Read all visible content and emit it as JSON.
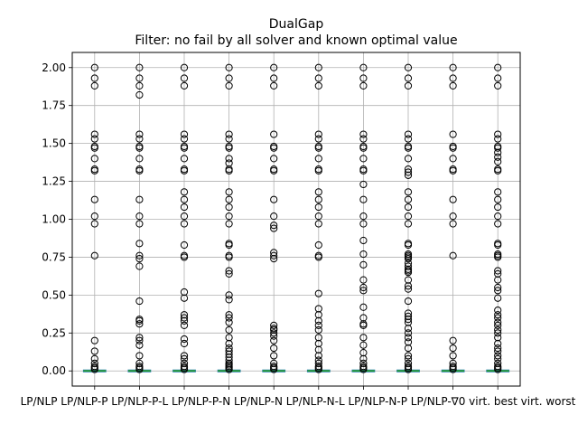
{
  "chart_data": {
    "type": "box",
    "title": "DualGap",
    "subtitle": "Filter: no fail by all solver and known optimal value",
    "xlabel": "",
    "ylabel": "",
    "ylim": [
      -0.1,
      2.1
    ],
    "y_ticks": [
      "0.00",
      "0.25",
      "0.50",
      "0.75",
      "1.00",
      "1.25",
      "1.50",
      "1.75",
      "2.00"
    ],
    "grid": true,
    "categories": [
      "LP/NLP",
      "LP/NLP-P",
      "LP/NLP-P-L",
      "LP/NLP-P-N",
      "LP/NLP-N",
      "LP/NLP-N-L",
      "LP/NLP-N-P",
      "LP/NLP-∇",
      "virt. best",
      "virt. worst"
    ],
    "category_labels_text": "LP/NLP LP/NLP-P LP/NLP-P-L LP/NLP-P-N LP/NLP-N LP/NLP-N-L LP/NLP-N-P LP/NLP-∇0 virt. best virt. worst",
    "box_median": 0,
    "box_q1": 0,
    "box_q3": 0,
    "outliers": [
      [
        2.0,
        1.93,
        1.88,
        1.56,
        1.53,
        1.48,
        1.47,
        1.4,
        1.33,
        1.32,
        1.13,
        1.02,
        0.97,
        0.76,
        0.2,
        0.13,
        0.08,
        0.05,
        0.03,
        0.02,
        0.01
      ],
      [
        2.0,
        1.93,
        1.88,
        1.82,
        1.56,
        1.53,
        1.48,
        1.47,
        1.4,
        1.33,
        1.32,
        1.13,
        1.02,
        0.97,
        0.84,
        0.76,
        0.74,
        0.69,
        0.46,
        0.34,
        0.33,
        0.31,
        0.22,
        0.2,
        0.17,
        0.1,
        0.05,
        0.03,
        0.02,
        0.01
      ],
      [
        2.0,
        1.93,
        1.88,
        1.56,
        1.53,
        1.48,
        1.47,
        1.4,
        1.33,
        1.32,
        1.18,
        1.13,
        1.08,
        1.02,
        0.97,
        0.83,
        0.76,
        0.75,
        0.52,
        0.48,
        0.37,
        0.35,
        0.33,
        0.3,
        0.21,
        0.18,
        0.1,
        0.08,
        0.05,
        0.03,
        0.02,
        0.01
      ],
      [
        2.0,
        1.93,
        1.88,
        1.56,
        1.53,
        1.48,
        1.47,
        1.4,
        1.37,
        1.33,
        1.32,
        1.18,
        1.13,
        1.08,
        1.02,
        0.97,
        0.84,
        0.83,
        0.76,
        0.75,
        0.66,
        0.64,
        0.5,
        0.47,
        0.37,
        0.35,
        0.32,
        0.27,
        0.22,
        0.18,
        0.15,
        0.13,
        0.11,
        0.09,
        0.07,
        0.05,
        0.04,
        0.03,
        0.02,
        0.01
      ],
      [
        2.0,
        1.93,
        1.88,
        1.56,
        1.48,
        1.47,
        1.4,
        1.33,
        1.32,
        1.13,
        1.02,
        0.96,
        0.94,
        0.78,
        0.76,
        0.74,
        0.3,
        0.28,
        0.27,
        0.25,
        0.23,
        0.2,
        0.15,
        0.1,
        0.05,
        0.03,
        0.02,
        0.01
      ],
      [
        2.0,
        1.93,
        1.88,
        1.56,
        1.53,
        1.48,
        1.47,
        1.4,
        1.33,
        1.32,
        1.18,
        1.13,
        1.08,
        1.02,
        0.97,
        0.83,
        0.76,
        0.75,
        0.51,
        0.41,
        0.37,
        0.33,
        0.3,
        0.27,
        0.22,
        0.18,
        0.14,
        0.1,
        0.07,
        0.05,
        0.03,
        0.02,
        0.01
      ],
      [
        2.0,
        1.93,
        1.88,
        1.56,
        1.53,
        1.48,
        1.47,
        1.4,
        1.33,
        1.32,
        1.23,
        1.13,
        1.02,
        0.97,
        0.86,
        0.77,
        0.7,
        0.6,
        0.55,
        0.53,
        0.42,
        0.35,
        0.31,
        0.3,
        0.22,
        0.17,
        0.12,
        0.08,
        0.05,
        0.03,
        0.02,
        0.01
      ],
      [
        2.0,
        1.93,
        1.88,
        1.56,
        1.53,
        1.48,
        1.47,
        1.4,
        1.33,
        1.31,
        1.29,
        1.18,
        1.13,
        1.08,
        1.02,
        0.97,
        0.84,
        0.83,
        0.77,
        0.76,
        0.75,
        0.74,
        0.71,
        0.69,
        0.67,
        0.66,
        0.65,
        0.6,
        0.56,
        0.54,
        0.46,
        0.38,
        0.36,
        0.34,
        0.32,
        0.28,
        0.25,
        0.22,
        0.19,
        0.15,
        0.1,
        0.08,
        0.05,
        0.03,
        0.02,
        0.01
      ],
      [
        2.0,
        1.93,
        1.88,
        1.56,
        1.48,
        1.47,
        1.4,
        1.33,
        1.32,
        1.13,
        1.02,
        0.97,
        0.76,
        0.2,
        0.15,
        0.1,
        0.05,
        0.03,
        0.02,
        0.01
      ],
      [
        2.0,
        1.93,
        1.88,
        1.56,
        1.53,
        1.48,
        1.47,
        1.44,
        1.41,
        1.38,
        1.33,
        1.32,
        1.18,
        1.13,
        1.08,
        1.02,
        0.97,
        0.84,
        0.83,
        0.77,
        0.76,
        0.75,
        0.66,
        0.64,
        0.6,
        0.55,
        0.53,
        0.48,
        0.4,
        0.37,
        0.35,
        0.32,
        0.3,
        0.27,
        0.25,
        0.22,
        0.18,
        0.15,
        0.13,
        0.1,
        0.08,
        0.05,
        0.03,
        0.02,
        0.01
      ]
    ],
    "colors": {
      "box": "#1f77b4",
      "median": "#2ca02c",
      "grid": "#b0b0b0",
      "marker": "#000000"
    }
  }
}
